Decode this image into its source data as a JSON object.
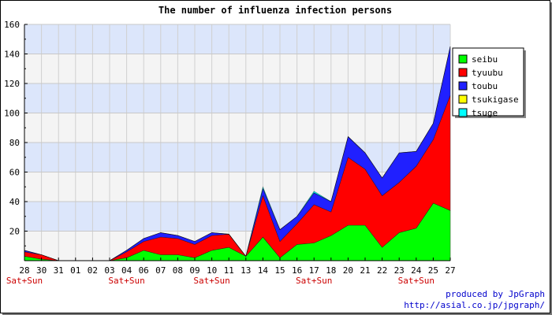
{
  "chart_data": {
    "type": "area",
    "stacked": true,
    "title": "The number of influenza infection persons",
    "categories": [
      "28",
      "30",
      "31",
      "01",
      "02",
      "03",
      "04",
      "06",
      "07",
      "08",
      "09",
      "10",
      "11",
      "13",
      "14",
      "15",
      "16",
      "17",
      "18",
      "20",
      "21",
      "22",
      "23",
      "24",
      "25",
      "27"
    ],
    "weekend_label": "Sat+Sun",
    "weekend_categories": [
      "28",
      "04",
      "10",
      "17",
      "24"
    ],
    "ylim": [
      0,
      160
    ],
    "y_ticks": [
      20,
      40,
      60,
      80,
      100,
      120,
      140,
      160
    ],
    "grid": true,
    "legend_position": "right",
    "series": [
      {
        "name": "seibu",
        "color": "#00ff00",
        "values": [
          3,
          1,
          0,
          0,
          0,
          0,
          2,
          7,
          4,
          4,
          2,
          7,
          9,
          3,
          16,
          2,
          11,
          12,
          17,
          24,
          24,
          9,
          19,
          22,
          39,
          34
        ]
      },
      {
        "name": "tyuubu",
        "color": "#ff0000",
        "values": [
          3,
          3,
          0,
          0,
          0,
          0,
          4,
          6,
          12,
          11,
          9,
          10,
          9,
          0,
          28,
          11,
          14,
          26,
          16,
          46,
          38,
          35,
          34,
          42,
          43,
          78
        ]
      },
      {
        "name": "toubu",
        "color": "#2020ff",
        "values": [
          1,
          0,
          0,
          0,
          0,
          0,
          1,
          2,
          3,
          2,
          2,
          2,
          0,
          0,
          5,
          8,
          5,
          8,
          7,
          14,
          11,
          12,
          20,
          10,
          11,
          33
        ]
      },
      {
        "name": "tsukigase",
        "color": "#ffff00",
        "values": [
          0,
          0,
          0,
          0,
          0,
          0,
          0,
          0,
          0,
          0,
          0,
          0,
          0,
          0,
          0,
          0,
          0,
          0,
          0,
          0,
          0,
          0,
          0,
          0,
          0,
          0
        ]
      },
      {
        "name": "tsuge",
        "color": "#00ffff",
        "values": [
          0,
          0,
          0,
          0,
          0,
          0,
          0,
          0,
          0,
          0,
          0,
          0,
          0,
          0,
          1,
          0,
          0,
          1,
          0,
          0,
          0,
          0,
          0,
          0,
          0,
          0
        ]
      }
    ]
  },
  "credits": {
    "line1": "produced by JpGraph",
    "line2": "http://asial.co.jp/jpgraph/"
  }
}
